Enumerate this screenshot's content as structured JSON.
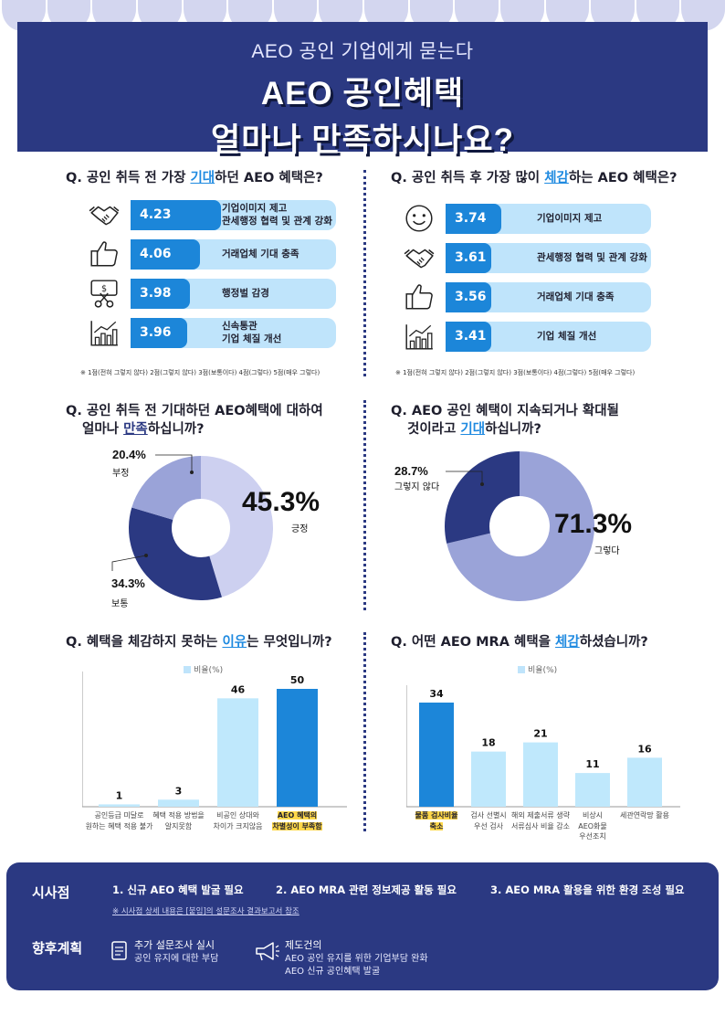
{
  "header": {
    "subtitle": "AEO 공인 기업에게 묻는다",
    "title_line1": "AEO 공인혜택",
    "title_line2": "얼마나 만족하시나요?"
  },
  "q1": {
    "prefix": "Q. 공인 취득 전 가장 ",
    "highlight": "기대",
    "suffix": "하던 AEO 혜택은?",
    "note": "※ 1점(전혀 그렇지 않다) 2점(그렇지 않다) 3점(보통이다) 4점(그렇다) 5점(매우 그렇다)"
  },
  "q2": {
    "prefix": "Q. 공인 취득 후 가장 많이 ",
    "highlight": "체감",
    "suffix": "하는 AEO 혜택은?",
    "note": "※ 1점(전혀 그렇지 않다) 2점(그렇지 않다) 3점(보통이다) 4점(그렇다) 5점(매우 그렇다)"
  },
  "q3": {
    "line1": "Q. 공인 취득 전 기대하던 AEO혜택에 대하여",
    "line2_prefix": "얼마나 ",
    "highlight": "만족",
    "line2_suffix": "하십니까?"
  },
  "q4": {
    "line1": "Q. AEO 공인 혜택이 지속되거나 확대될",
    "line2_prefix": "것이라고 ",
    "highlight": "기대",
    "line2_suffix": "하십니까?"
  },
  "q5": {
    "prefix": "Q. 혜택을 체감하지 못하는 ",
    "highlight": "이유",
    "suffix": "는 무엇입니까?",
    "legend": "비율(%)"
  },
  "q6": {
    "prefix": "Q. 어떤 AEO MRA 혜택을 ",
    "highlight": "체감",
    "suffix": "하셨습니까?",
    "legend": "비율(%)"
  },
  "chart_data": [
    {
      "type": "bar",
      "orientation": "horizontal",
      "title": "Q. 공인 취득 전 가장 기대하던 AEO 혜택은?",
      "categories": [
        "기업이미지 제고\n관세행정 협력 및 관계 강화",
        "거래업체 기대 충족",
        "행정벌 감경",
        "신속통관\n기업 체질 개선"
      ],
      "values": [
        4.23,
        4.06,
        3.98,
        3.96
      ],
      "value_labels": [
        "4.23",
        "4.06",
        "3.98",
        "3.96"
      ],
      "icons": [
        "handshake-icon",
        "thumbs-up-icon",
        "money-cut-icon",
        "growth-chart-icon"
      ],
      "xlim": [
        3.5,
        5
      ]
    },
    {
      "type": "bar",
      "orientation": "horizontal",
      "title": "Q. 공인 취득 후 가장 많이 체감하는 AEO 혜택은?",
      "categories": [
        "기업이미지 제고",
        "관세행정 협력 및 관계 강화",
        "거래업체 기대 충족",
        "기업 체질 개선"
      ],
      "values": [
        3.74,
        3.61,
        3.56,
        3.41
      ],
      "value_labels": [
        "3.74",
        "3.61",
        "3.56",
        "3.41"
      ],
      "icons": [
        "smiley-icon",
        "handshake-icon",
        "thumbs-up-icon",
        "growth-chart-icon"
      ],
      "xlim": [
        3.2,
        5
      ]
    },
    {
      "type": "pie",
      "title": "Q. 공인 취득 전 기대하던 AEO혜택에 대하여 얼마나 만족하십니까?",
      "slices": [
        {
          "label": "긍정",
          "value": 45.3,
          "display": "45.3%",
          "color": "#cdd0f0"
        },
        {
          "label": "보통",
          "value": 34.3,
          "display": "34.3%",
          "color": "#2b3982"
        },
        {
          "label": "부정",
          "value": 20.4,
          "display": "20.4%",
          "color": "#9aa3d8"
        }
      ]
    },
    {
      "type": "pie",
      "title": "Q. AEO 공인 혜택이 지속되거나 확대될 것이라고 기대하십니까?",
      "slices": [
        {
          "label": "그렇다",
          "value": 71.3,
          "display": "71.3%",
          "color": "#9aa3d8"
        },
        {
          "label": "그렇지 않다",
          "value": 28.7,
          "display": "28.7%",
          "color": "#2b3982"
        }
      ]
    },
    {
      "type": "bar",
      "title": "Q. 혜택을 체감하지 못하는 이유는 무엇입니까?",
      "legend": "비율(%)",
      "categories": [
        "공인등급 미달로\n원하는 혜택 적용 불가",
        "혜택 적용 방법을\n알지못함",
        "비공인 상대와\n차이가 크지않음",
        "AEO 혜택의\n차별성이 부족함"
      ],
      "values": [
        1,
        3,
        46,
        50
      ],
      "highlight_index": 3,
      "ylim": [
        0,
        50
      ]
    },
    {
      "type": "bar",
      "title": "Q. 어떤 AEO MRA 혜택을 체감하셨습니까?",
      "legend": "비율(%)",
      "categories": [
        "물품 검사비율\n축소",
        "검사 선별시\n우선 검사",
        "해외 제출서류 생략\n서류심사 비율 감소",
        "비상시\nAEO화물\n우선조치",
        "세관연락망 활용"
      ],
      "values": [
        34,
        18,
        21,
        11,
        16
      ],
      "highlight_index": 0,
      "ylim": [
        0,
        34
      ]
    }
  ],
  "footer": {
    "implications_label": "시사점",
    "points": [
      "1. 신규 AEO 혜택 발굴 필요",
      "2. AEO MRA 관련 정보제공 활동 필요",
      "3. AEO MRA 활용을 위한 환경 조성 필요"
    ],
    "footnote": "※ 시사점 상세 내용은 [붙임]의 설문조사 결과보고서 참조",
    "plan_label": "향후계획",
    "plan1_title": "추가 설문조사 실시",
    "plan1_sub": "공인 유지에 대한 부담",
    "plan2_title": "제도건의",
    "plan2_sub1": "AEO 공인 유지를 위한 기업부담 완화",
    "plan2_sub2": "AEO 신규 공인혜택 발굴"
  }
}
